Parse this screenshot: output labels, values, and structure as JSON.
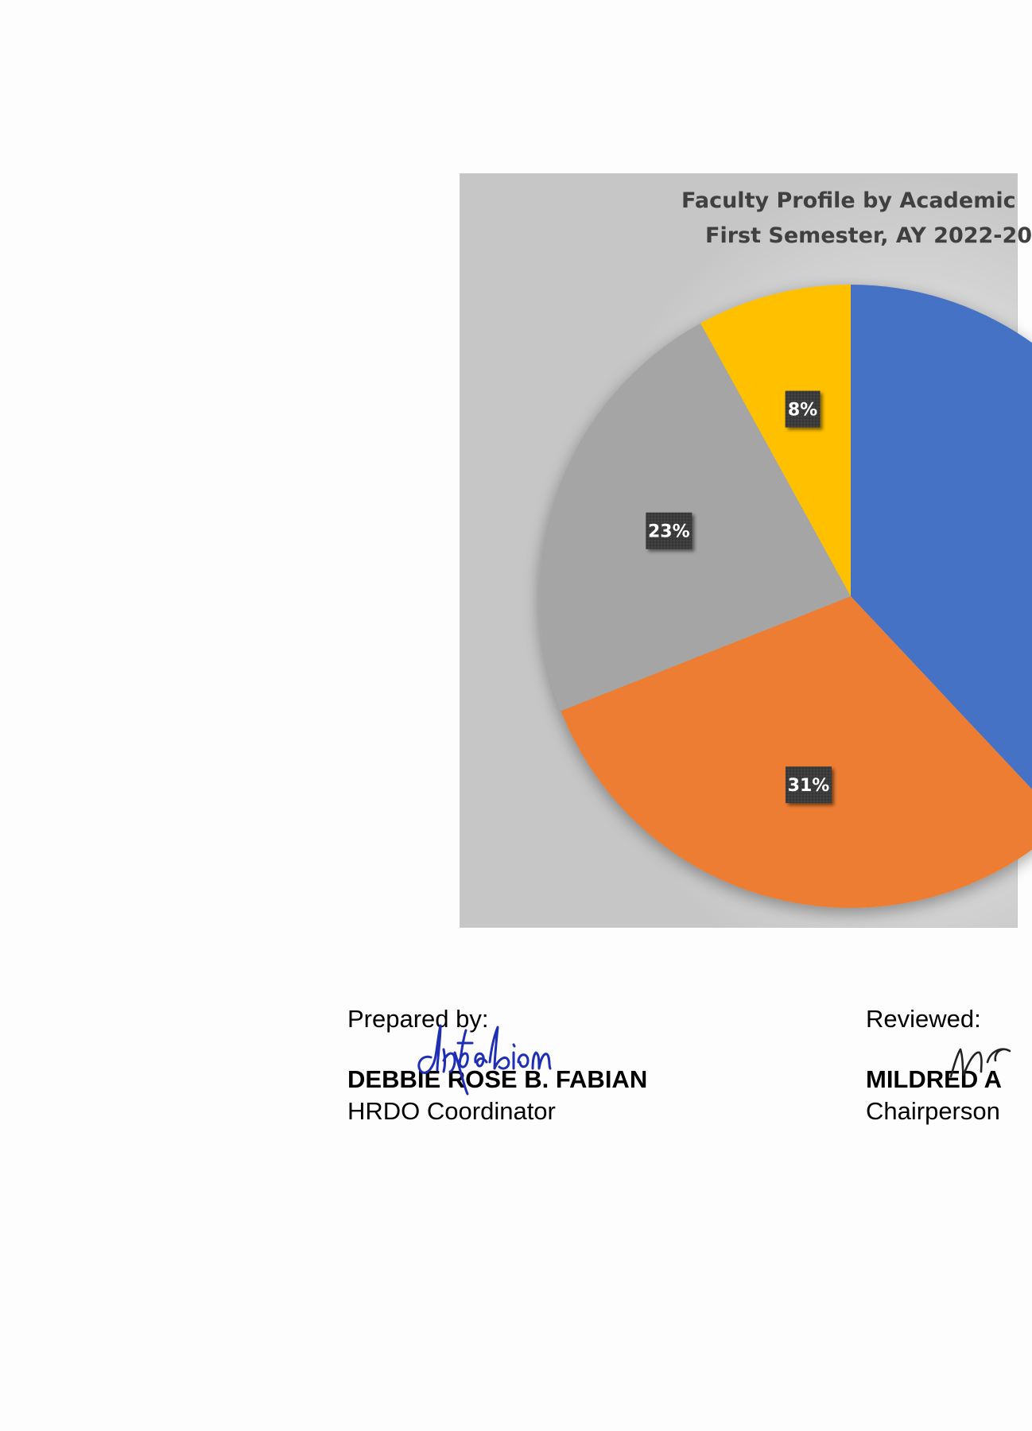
{
  "chart_data": {
    "type": "pie",
    "title": "Faculty Profile by Academic",
    "subtitle": "First Semester, AY 2022-20",
    "slices": [
      {
        "value": 38,
        "color": "#4472C4",
        "label": ""
      },
      {
        "value": 31,
        "color": "#ED7D31",
        "label": "31%"
      },
      {
        "value": 23,
        "color": "#A5A5A5",
        "label": "23%"
      },
      {
        "value": 8,
        "color": "#FFC000",
        "label": "8%"
      }
    ],
    "start": "12 o'clock",
    "direction": "clockwise"
  },
  "signatories": {
    "prepared": {
      "label": "Prepared by:",
      "name": "DEBBIE ROSE B. FABIAN",
      "title": "HRDO Coordinator",
      "signature": "drbfabian"
    },
    "reviewed": {
      "label": "Reviewed:",
      "name": "MILDRED A",
      "title": "Chairperson"
    }
  }
}
